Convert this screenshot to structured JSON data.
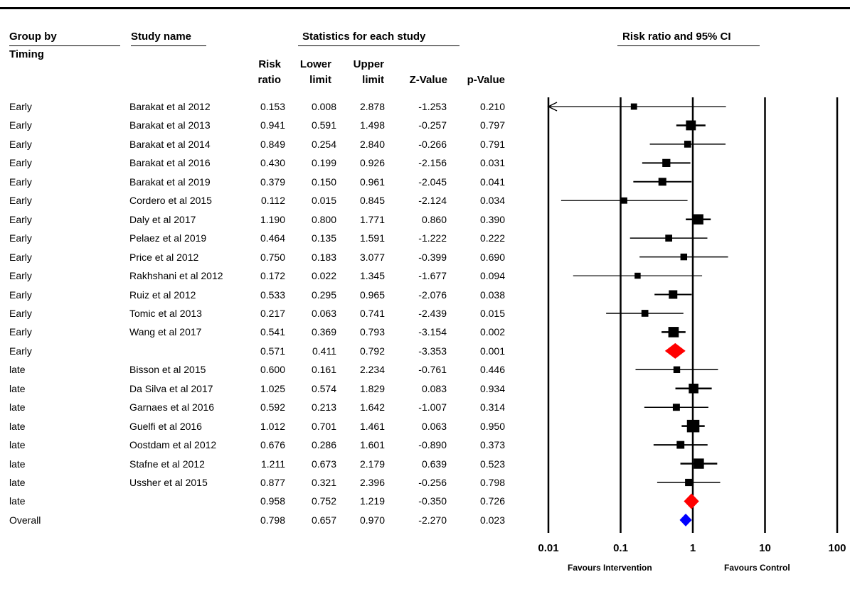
{
  "headers": {
    "group_by": "Group by",
    "timing": "Timing",
    "study_name": "Study name",
    "statistics": "Statistics for each study",
    "plot_title": "Risk ratio and 95% CI",
    "col_rr": [
      "Risk",
      "ratio"
    ],
    "col_lower": [
      "Lower",
      "limit"
    ],
    "col_upper": [
      "Upper",
      "limit"
    ],
    "col_z": "Z-Value",
    "col_p": "p-Value"
  },
  "footer": {
    "favours_left": "Favours Intervention",
    "favours_right": "Favours Control"
  },
  "chart_data": {
    "type": "forest",
    "title": "Risk ratio and 95% CI",
    "x_scale": "log",
    "xlim": [
      0.01,
      100
    ],
    "x_ticks": [
      "0.01",
      "0.1",
      "1",
      "10",
      "100"
    ],
    "rows": [
      {
        "group": "Early",
        "study": "Barakat et al 2012",
        "rr": "0.153",
        "lower": "0.008",
        "upper": "2.878",
        "z": "-1.253",
        "p": "0.210",
        "rrv": 0.153,
        "lv": 0.008,
        "uv": 2.878,
        "weight": 0.3,
        "kind": "study",
        "arrow_left": true
      },
      {
        "group": "Early",
        "study": "Barakat et al 2013",
        "rr": "0.941",
        "lower": "0.591",
        "upper": "1.498",
        "z": "-0.257",
        "p": "0.797",
        "rrv": 0.941,
        "lv": 0.591,
        "uv": 1.498,
        "weight": 1.6,
        "kind": "study"
      },
      {
        "group": "Early",
        "study": "Barakat et al 2014",
        "rr": "0.849",
        "lower": "0.254",
        "upper": "2.840",
        "z": "-0.266",
        "p": "0.791",
        "rrv": 0.849,
        "lv": 0.254,
        "uv": 2.84,
        "weight": 0.45,
        "kind": "study"
      },
      {
        "group": "Early",
        "study": "Barakat et al 2016",
        "rr": "0.430",
        "lower": "0.199",
        "upper": "0.926",
        "z": "-2.156",
        "p": "0.031",
        "rrv": 0.43,
        "lv": 0.199,
        "uv": 0.926,
        "weight": 0.8,
        "kind": "study"
      },
      {
        "group": "Early",
        "study": "Barakat et al 2019",
        "rr": "0.379",
        "lower": "0.150",
        "upper": "0.961",
        "z": "-2.045",
        "p": "0.041",
        "rrv": 0.379,
        "lv": 0.15,
        "uv": 0.961,
        "weight": 0.75,
        "kind": "study"
      },
      {
        "group": "Early",
        "study": "Cordero et al 2015",
        "rr": "0.112",
        "lower": "0.015",
        "upper": "0.845",
        "z": "-2.124",
        "p": "0.034",
        "rrv": 0.112,
        "lv": 0.015,
        "uv": 0.845,
        "weight": 0.3,
        "kind": "study"
      },
      {
        "group": "Early",
        "study": "Daly et al 2017",
        "rr": "1.190",
        "lower": "0.800",
        "upper": "1.771",
        "z": "0.860",
        "p": "0.390",
        "rrv": 1.19,
        "lv": 0.8,
        "uv": 1.771,
        "weight": 1.8,
        "kind": "study"
      },
      {
        "group": "Early",
        "study": "Pelaez et al 2019",
        "rr": "0.464",
        "lower": "0.135",
        "upper": "1.591",
        "z": "-1.222",
        "p": "0.222",
        "rrv": 0.464,
        "lv": 0.135,
        "uv": 1.591,
        "weight": 0.45,
        "kind": "study"
      },
      {
        "group": "Early",
        "study": "Price et al 2012",
        "rr": "0.750",
        "lower": "0.183",
        "upper": "3.077",
        "z": "-0.399",
        "p": "0.690",
        "rrv": 0.75,
        "lv": 0.183,
        "uv": 3.077,
        "weight": 0.4,
        "kind": "study"
      },
      {
        "group": "Early",
        "study": "Rakhshani et al 2012",
        "rr": "0.172",
        "lower": "0.022",
        "upper": "1.345",
        "z": "-1.677",
        "p": "0.094",
        "rrv": 0.172,
        "lv": 0.022,
        "uv": 1.345,
        "weight": 0.25,
        "kind": "study"
      },
      {
        "group": "Early",
        "study": "Ruiz et al 2012",
        "rr": "0.533",
        "lower": "0.295",
        "upper": "0.965",
        "z": "-2.076",
        "p": "0.038",
        "rrv": 0.533,
        "lv": 0.295,
        "uv": 0.965,
        "weight": 1.0,
        "kind": "study"
      },
      {
        "group": "Early",
        "study": "Tomic et al 2013",
        "rr": "0.217",
        "lower": "0.063",
        "upper": "0.741",
        "z": "-2.439",
        "p": "0.015",
        "rrv": 0.217,
        "lv": 0.063,
        "uv": 0.741,
        "weight": 0.45,
        "kind": "study"
      },
      {
        "group": "Early",
        "study": "Wang et al 2017",
        "rr": "0.541",
        "lower": "0.369",
        "upper": "0.793",
        "z": "-3.154",
        "p": "0.002",
        "rrv": 0.541,
        "lv": 0.369,
        "uv": 0.793,
        "weight": 1.9,
        "kind": "study"
      },
      {
        "group": "Early",
        "study": "",
        "rr": "0.571",
        "lower": "0.411",
        "upper": "0.792",
        "z": "-3.353",
        "p": "0.001",
        "rrv": 0.571,
        "lv": 0.411,
        "uv": 0.792,
        "kind": "subtotal",
        "color": "#ff0000"
      },
      {
        "group": "late",
        "study": "Bisson et al 2015",
        "rr": "0.600",
        "lower": "0.161",
        "upper": "2.234",
        "z": "-0.761",
        "p": "0.446",
        "rrv": 0.6,
        "lv": 0.161,
        "uv": 2.234,
        "weight": 0.4,
        "kind": "study"
      },
      {
        "group": "late",
        "study": "Da Silva et al 2017",
        "rr": "1.025",
        "lower": "0.574",
        "upper": "1.829",
        "z": "0.083",
        "p": "0.934",
        "rrv": 1.025,
        "lv": 0.574,
        "uv": 1.829,
        "weight": 1.5,
        "kind": "study"
      },
      {
        "group": "late",
        "study": "Garnaes et al 2016",
        "rr": "0.592",
        "lower": "0.213",
        "upper": "1.642",
        "z": "-1.007",
        "p": "0.314",
        "rrv": 0.592,
        "lv": 0.213,
        "uv": 1.642,
        "weight": 0.5,
        "kind": "study"
      },
      {
        "group": "late",
        "study": "Guelfi et al 2016",
        "rr": "1.012",
        "lower": "0.701",
        "upper": "1.461",
        "z": "0.063",
        "p": "0.950",
        "rrv": 1.012,
        "lv": 0.701,
        "uv": 1.461,
        "weight": 3.2,
        "kind": "study"
      },
      {
        "group": "late",
        "study": "Oostdam et al 2012",
        "rr": "0.676",
        "lower": "0.286",
        "upper": "1.601",
        "z": "-0.890",
        "p": "0.373",
        "rrv": 0.676,
        "lv": 0.286,
        "uv": 1.601,
        "weight": 0.7,
        "kind": "study"
      },
      {
        "group": "late",
        "study": "Stafne et al 2012",
        "rr": "1.211",
        "lower": "0.673",
        "upper": "2.179",
        "z": "0.639",
        "p": "0.523",
        "rrv": 1.211,
        "lv": 0.673,
        "uv": 2.179,
        "weight": 1.8,
        "kind": "study"
      },
      {
        "group": "late",
        "study": "Ussher et al 2015",
        "rr": "0.877",
        "lower": "0.321",
        "upper": "2.396",
        "z": "-0.256",
        "p": "0.798",
        "rrv": 0.877,
        "lv": 0.321,
        "uv": 2.396,
        "weight": 0.55,
        "kind": "study"
      },
      {
        "group": "late",
        "study": "",
        "rr": "0.958",
        "lower": "0.752",
        "upper": "1.219",
        "z": "-0.350",
        "p": "0.726",
        "rrv": 0.958,
        "lv": 0.752,
        "uv": 1.219,
        "kind": "subtotal",
        "color": "#ff0000"
      },
      {
        "group": "Overall",
        "study": "",
        "rr": "0.798",
        "lower": "0.657",
        "upper": "0.970",
        "z": "-2.270",
        "p": "0.023",
        "rrv": 0.798,
        "lv": 0.657,
        "uv": 0.97,
        "kind": "overall",
        "color": "#0000ff"
      }
    ]
  }
}
